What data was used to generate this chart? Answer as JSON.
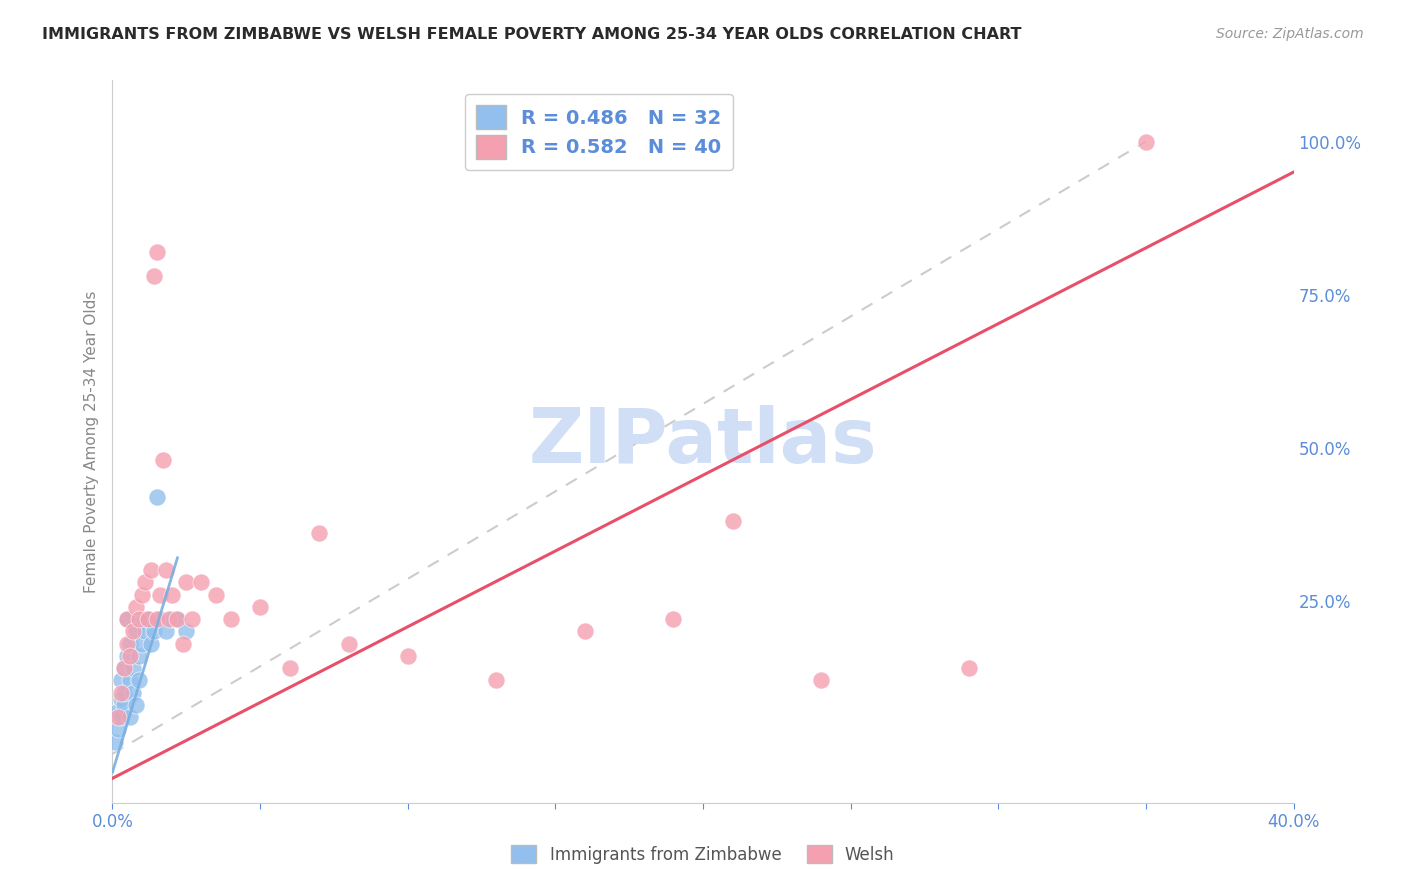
{
  "title": "IMMIGRANTS FROM ZIMBABWE VS WELSH FEMALE POVERTY AMONG 25-34 YEAR OLDS CORRELATION CHART",
  "source": "Source: ZipAtlas.com",
  "ylabel": "Female Poverty Among 25-34 Year Olds",
  "legend_blue_r": "R = 0.486",
  "legend_blue_n": "N = 32",
  "legend_pink_r": "R = 0.582",
  "legend_pink_n": "N = 40",
  "blue_scatter_color": "#92BFED",
  "pink_scatter_color": "#F4A0B0",
  "blue_line_color": "#7AAEE0",
  "pink_line_color": "#E8506A",
  "watermark": "ZIPatlas",
  "watermark_color": "#D0DFF5",
  "title_color": "#2A2A2A",
  "source_color": "#999999",
  "axis_label_color": "#5B8DD9",
  "ylabel_color": "#888888",
  "grid_color": "#DDDDDD",
  "background_color": "#FFFFFF",
  "xlim": [
    0.0,
    0.4
  ],
  "ylim": [
    -0.08,
    1.1
  ],
  "right_yticks": [
    0.0,
    0.25,
    0.5,
    0.75,
    1.0
  ],
  "right_yticklabels": [
    "",
    "25.0%",
    "50.0%",
    "75.0%",
    "100.0%"
  ],
  "xtick_positions": [
    0.0,
    0.05,
    0.1,
    0.15,
    0.2,
    0.25,
    0.3,
    0.35,
    0.4
  ],
  "xtick_labels": [
    "0.0%",
    "",
    "",
    "",
    "",
    "",
    "",
    "",
    "40.0%"
  ],
  "blue_line_x0": 0.0,
  "blue_line_y0": -0.03,
  "blue_line_x1": 0.022,
  "blue_line_y1": 0.32,
  "pink_line_x0": 0.0,
  "pink_line_y0": -0.04,
  "pink_line_x1": 0.4,
  "pink_line_y1": 0.95,
  "blue_x": [
    0.001,
    0.002,
    0.002,
    0.003,
    0.003,
    0.003,
    0.004,
    0.004,
    0.004,
    0.005,
    0.005,
    0.006,
    0.006,
    0.006,
    0.007,
    0.007,
    0.008,
    0.008,
    0.009,
    0.009,
    0.01,
    0.01,
    0.011,
    0.012,
    0.013,
    0.014,
    0.015,
    0.016,
    0.018,
    0.02,
    0.022,
    0.025
  ],
  "blue_y": [
    0.02,
    0.04,
    0.07,
    0.06,
    0.09,
    0.12,
    0.08,
    0.14,
    0.1,
    0.16,
    0.22,
    0.12,
    0.18,
    0.06,
    0.14,
    0.1,
    0.2,
    0.08,
    0.16,
    0.12,
    0.18,
    0.22,
    0.2,
    0.22,
    0.18,
    0.2,
    0.42,
    0.22,
    0.2,
    0.22,
    0.22,
    0.2
  ],
  "pink_x": [
    0.002,
    0.003,
    0.004,
    0.005,
    0.005,
    0.006,
    0.007,
    0.008,
    0.009,
    0.01,
    0.011,
    0.012,
    0.013,
    0.014,
    0.015,
    0.015,
    0.016,
    0.017,
    0.018,
    0.019,
    0.02,
    0.022,
    0.024,
    0.025,
    0.027,
    0.03,
    0.035,
    0.04,
    0.05,
    0.06,
    0.07,
    0.08,
    0.1,
    0.13,
    0.16,
    0.19,
    0.21,
    0.24,
    0.29,
    0.35
  ],
  "pink_y": [
    0.06,
    0.1,
    0.14,
    0.18,
    0.22,
    0.16,
    0.2,
    0.24,
    0.22,
    0.26,
    0.28,
    0.22,
    0.3,
    0.78,
    0.82,
    0.22,
    0.26,
    0.48,
    0.3,
    0.22,
    0.26,
    0.22,
    0.18,
    0.28,
    0.22,
    0.28,
    0.26,
    0.22,
    0.24,
    0.14,
    0.36,
    0.18,
    0.16,
    0.12,
    0.2,
    0.22,
    0.38,
    0.12,
    0.14,
    1.0
  ]
}
